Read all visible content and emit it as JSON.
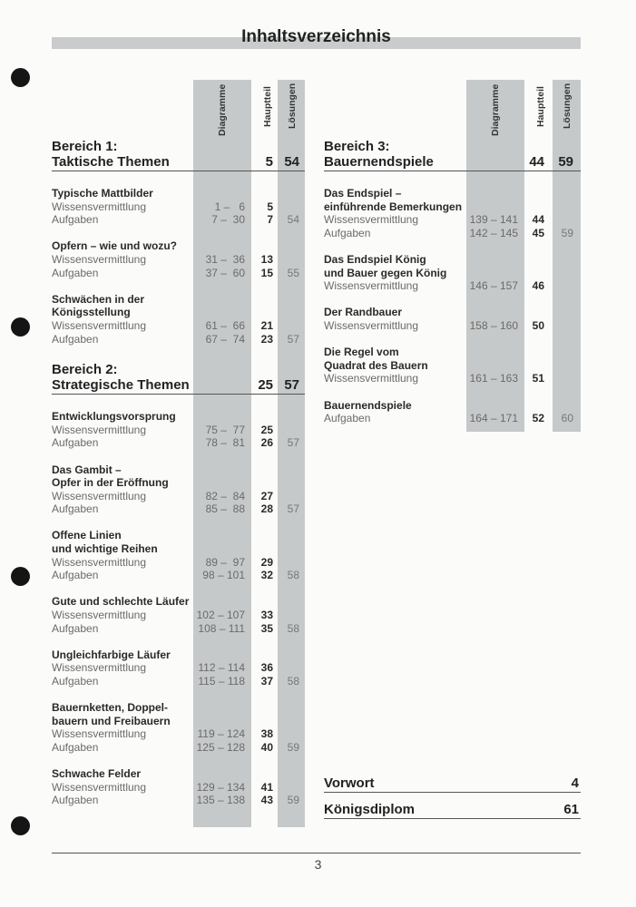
{
  "page_title": "Inhaltsverzeichnis",
  "column_headers": {
    "diagramme": "Diagramme",
    "hauptteil": "Hauptteil",
    "loesungen": "Lösungen"
  },
  "left_column": {
    "sections": [
      {
        "title_lines": [
          "Bereich 1:",
          "Taktische Themen"
        ],
        "haupt": "5",
        "loes": "54",
        "groups": [
          {
            "title": [
              "Typische Mattbilder"
            ],
            "items": [
              {
                "label": "Wissensvermittlung",
                "diag": "1 –   6",
                "haupt": "5",
                "loes": ""
              },
              {
                "label": "Aufgaben",
                "diag": "7 –  30",
                "haupt": "7",
                "loes": "54"
              }
            ]
          },
          {
            "title": [
              "Opfern – wie und wozu?"
            ],
            "items": [
              {
                "label": "Wissensvermittlung",
                "diag": "31 –  36",
                "haupt": "13",
                "loes": ""
              },
              {
                "label": "Aufgaben",
                "diag": "37 –  60",
                "haupt": "15",
                "loes": "55"
              }
            ]
          },
          {
            "title": [
              "Schwächen in der",
              "Königsstellung"
            ],
            "items": [
              {
                "label": "Wissensvermittlung",
                "diag": "61 –  66",
                "haupt": "21",
                "loes": ""
              },
              {
                "label": "Aufgaben",
                "diag": "67 –  74",
                "haupt": "23",
                "loes": "57"
              }
            ]
          }
        ]
      },
      {
        "title_lines": [
          "Bereich 2:",
          "Strategische Themen"
        ],
        "haupt": "25",
        "loes": "57",
        "groups": [
          {
            "title": [
              "Entwicklungsvorsprung"
            ],
            "items": [
              {
                "label": "Wissensvermittlung",
                "diag": "75 –  77",
                "haupt": "25",
                "loes": ""
              },
              {
                "label": "Aufgaben",
                "diag": "78 –  81",
                "haupt": "26",
                "loes": "57"
              }
            ]
          },
          {
            "title": [
              "Das Gambit –",
              "Opfer in der Eröffnung"
            ],
            "items": [
              {
                "label": "Wissensvermittlung",
                "diag": "82 –  84",
                "haupt": "27",
                "loes": ""
              },
              {
                "label": "Aufgaben",
                "diag": "85 –  88",
                "haupt": "28",
                "loes": "57"
              }
            ]
          },
          {
            "title": [
              "Offene Linien",
              "und wichtige Reihen"
            ],
            "items": [
              {
                "label": "Wissensvermittlung",
                "diag": "89 –  97",
                "haupt": "29",
                "loes": ""
              },
              {
                "label": "Aufgaben",
                "diag": "98 – 101",
                "haupt": "32",
                "loes": "58"
              }
            ]
          },
          {
            "title": [
              "Gute und schlechte Läufer"
            ],
            "items": [
              {
                "label": "Wissensvermittlung",
                "diag": "102 – 107",
                "haupt": "33",
                "loes": ""
              },
              {
                "label": "Aufgaben",
                "diag": "108 – 111",
                "haupt": "35",
                "loes": "58"
              }
            ]
          },
          {
            "title": [
              "Ungleichfarbige Läufer"
            ],
            "items": [
              {
                "label": "Wissensvermittlung",
                "diag": "112 – 114",
                "haupt": "36",
                "loes": ""
              },
              {
                "label": "Aufgaben",
                "diag": "115 – 118",
                "haupt": "37",
                "loes": "58"
              }
            ]
          },
          {
            "title": [
              "Bauernketten, Doppel-",
              "bauern und Freibauern"
            ],
            "items": [
              {
                "label": "Wissensvermittlung",
                "diag": "119 – 124",
                "haupt": "38",
                "loes": ""
              },
              {
                "label": "Aufgaben",
                "diag": "125 – 128",
                "haupt": "40",
                "loes": "59"
              }
            ]
          },
          {
            "title": [
              "Schwache Felder"
            ],
            "items": [
              {
                "label": "Wissensvermittlung",
                "diag": "129 – 134",
                "haupt": "41",
                "loes": ""
              },
              {
                "label": "Aufgaben",
                "diag": "135 – 138",
                "haupt": "43",
                "loes": "59"
              }
            ]
          }
        ]
      }
    ]
  },
  "right_column": {
    "sections": [
      {
        "title_lines": [
          "Bereich 3:",
          "Bauernendspiele"
        ],
        "haupt": "44",
        "loes": "59",
        "groups": [
          {
            "title": [
              "Das Endspiel –",
              "einführende Bemerkungen"
            ],
            "items": [
              {
                "label": "Wissensvermittlung",
                "diag": "139 – 141",
                "haupt": "44",
                "loes": ""
              },
              {
                "label": "Aufgaben",
                "diag": "142 – 145",
                "haupt": "45",
                "loes": "59"
              }
            ]
          },
          {
            "title": [
              "Das Endspiel König",
              "und Bauer gegen König"
            ],
            "items": [
              {
                "label": "Wissensvermittlung",
                "diag": "146 – 157",
                "haupt": "46",
                "loes": ""
              }
            ]
          },
          {
            "title": [
              "Der Randbauer"
            ],
            "items": [
              {
                "label": "Wissensvermittlung",
                "diag": "158 – 160",
                "haupt": "50",
                "loes": ""
              }
            ]
          },
          {
            "title": [
              "Die Regel vom",
              "Quadrat des Bauern"
            ],
            "items": [
              {
                "label": "Wissensvermittlung",
                "diag": "161 – 163",
                "haupt": "51",
                "loes": ""
              }
            ]
          },
          {
            "title": [
              "Bauernendspiele"
            ],
            "items": [
              {
                "label": "Aufgaben",
                "diag": "164 – 171",
                "haupt": "52",
                "loes": "60"
              }
            ]
          }
        ]
      }
    ]
  },
  "extras": [
    {
      "label": "Vorwort",
      "page": "4"
    },
    {
      "label": "Königsdiplom",
      "page": "61"
    }
  ],
  "page_number": "3"
}
